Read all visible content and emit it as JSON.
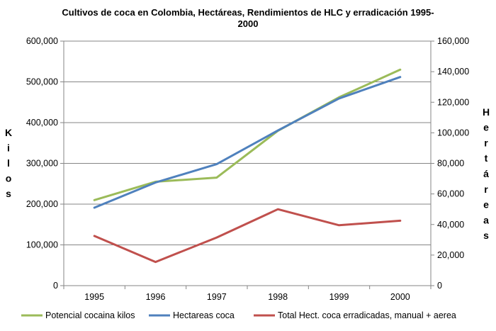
{
  "chart_data": {
    "type": "line",
    "title_lines": [
      "Cultivos de coca en Colombia, Hectáreas, Rendimientos de HLC y erradicación 1995-",
      "2000"
    ],
    "categories": [
      "1995",
      "1996",
      "1997",
      "1998",
      "1999",
      "2000"
    ],
    "y_left": {
      "label": "Kilos",
      "range": [
        0,
        600000
      ],
      "ticks": [
        "0",
        "100,000",
        "200,000",
        "300,000",
        "400,000",
        "500,000",
        "600,000"
      ]
    },
    "y_right": {
      "label": "Hertáreas",
      "range": [
        0,
        160000
      ],
      "ticks": [
        "0",
        "20,000",
        "40,000",
        "60,000",
        "80,000",
        "100,000",
        "120,000",
        "140,000",
        "160,000"
      ]
    },
    "series": [
      {
        "name": "Potencial cocaina kilos",
        "color": "#9BBB59",
        "axis": "left",
        "values": [
          210000,
          255000,
          265000,
          380000,
          462000,
          530000
        ]
      },
      {
        "name": "Hectareas coca",
        "color": "#4F81BD",
        "axis": "right",
        "values": [
          51000,
          67500,
          79500,
          101500,
          122500,
          136500
        ]
      },
      {
        "name": "Total Hect. coca erradicadas, manual + aerea",
        "color": "#C0504D",
        "axis": "right",
        "values": [
          32500,
          15500,
          31500,
          50000,
          39500,
          42500
        ]
      }
    ],
    "grid": true,
    "legend_position": "bottom"
  }
}
